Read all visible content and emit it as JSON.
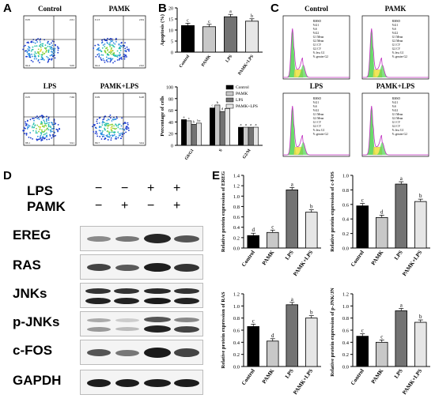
{
  "panels": {
    "a": "A",
    "b": "B",
    "c": "C",
    "d": "D",
    "e": "E"
  },
  "groups": [
    "Control",
    "PAMK",
    "LPS",
    "PAMK+LPS"
  ],
  "flow": {
    "quadrants": [
      {
        "q1": "0.05",
        "q2": "2.61",
        "q3": "94.4",
        "q4": "3.00"
      },
      {
        "q1": "0.13",
        "q2": "2.84",
        "q3": "94.4",
        "q4": "2.62"
      },
      {
        "q1": "0.05",
        "q2": "7.66",
        "q3": "88.1",
        "q4": "3.91"
      },
      {
        "q1": "0.09",
        "q2": "6.48",
        "q3": "89.7",
        "q4": "3.64"
      }
    ]
  },
  "cycle_stats": {
    "labels": [
      "RMSD",
      "%G1",
      "%S",
      "%G2",
      "G1 Mean",
      "G2 Mean",
      "G1 CV",
      "G2 CV",
      "% less G1",
      "% greater G2"
    ]
  },
  "western": {
    "lps_label": "LPS",
    "pamk_label": "PAMK",
    "lps_signs": [
      "−",
      "−",
      "+",
      "+"
    ],
    "pamk_signs": [
      "−",
      "+",
      "−",
      "+"
    ],
    "proteins": [
      "EREG",
      "RAS",
      "JNKs",
      "p-JNKs",
      "c-FOS",
      "GAPDH"
    ]
  },
  "colors": {
    "control": "#000000",
    "pamk": "#c8c8c8",
    "lps": "#737373",
    "pamk_lps": "#e6e6e6"
  },
  "chart_data": [
    {
      "type": "bar",
      "title": "",
      "categories": [
        "Control",
        "PAMK",
        "LPS",
        "PAMK+LPS"
      ],
      "values": [
        12,
        11.5,
        16,
        14
      ],
      "letters": [
        "c",
        "c",
        "a",
        "b"
      ],
      "xlabel": "",
      "ylabel": "Apoptosis (%)",
      "ylim": [
        0,
        20
      ],
      "yticks": [
        "0",
        "5",
        "10",
        "15",
        "20"
      ]
    },
    {
      "type": "bar",
      "title": "",
      "categories": [
        "G0/G1",
        "S",
        "G2/M"
      ],
      "series": [
        {
          "name": "Control",
          "values": [
            44,
            64,
            31
          ],
          "letters": [
            "a",
            "c",
            "a"
          ]
        },
        {
          "name": "PAMK",
          "values": [
            42,
            69,
            31
          ],
          "letters": [
            "c",
            "b",
            "a"
          ]
        },
        {
          "name": "LPS",
          "values": [
            36,
            58,
            31
          ],
          "letters": [
            "b",
            "d",
            "a"
          ]
        },
        {
          "name": "PAMK+LPS",
          "values": [
            38,
            63,
            31
          ],
          "letters": [
            "bc",
            "a",
            "a"
          ]
        }
      ],
      "xlabel": "",
      "ylabel": "Percentage of cells",
      "ylim": [
        0,
        100
      ],
      "yticks": [
        "0",
        "20",
        "40",
        "60",
        "80",
        "100"
      ],
      "legend": "top-right"
    },
    {
      "type": "bar",
      "title": "",
      "categories": [
        "Control",
        "PAMK",
        "LPS",
        "PAMK+LPS"
      ],
      "values": [
        0.24,
        0.3,
        1.12,
        0.69
      ],
      "letters": [
        "d",
        "c",
        "a",
        "b"
      ],
      "ylabel": "Relative protein expression of EREG",
      "ylim": [
        0,
        1.4
      ],
      "yticks": [
        "0.0",
        "0.2",
        "0.4",
        "0.6",
        "0.8",
        "1.0",
        "1.2",
        "1.4"
      ]
    },
    {
      "type": "bar",
      "title": "",
      "categories": [
        "Control",
        "PAMK",
        "LPS",
        "PAMK+LPS"
      ],
      "values": [
        0.58,
        0.42,
        0.88,
        0.64
      ],
      "letters": [
        "c",
        "d",
        "a",
        "b"
      ],
      "ylabel": "Relative protein expression of c-FOS",
      "ylim": [
        0,
        1.0
      ],
      "yticks": [
        "0.0",
        "0.2",
        "0.4",
        "0.6",
        "0.8",
        "1.0"
      ]
    },
    {
      "type": "bar",
      "title": "",
      "categories": [
        "Control",
        "PAMK",
        "LPS",
        "PAMK+LPS"
      ],
      "values": [
        0.66,
        0.42,
        1.02,
        0.8
      ],
      "letters": [
        "c",
        "d",
        "a",
        "b"
      ],
      "ylabel": "Relative protein expression of RAS",
      "ylim": [
        0,
        1.2
      ],
      "yticks": [
        "0.0",
        "0.2",
        "0.4",
        "0.6",
        "0.8",
        "1.0",
        "1.2"
      ]
    },
    {
      "type": "bar",
      "title": "",
      "categories": [
        "Control",
        "PAMK",
        "LPS",
        "PAMK+LPS"
      ],
      "values": [
        0.5,
        0.4,
        0.92,
        0.73
      ],
      "letters": [
        "c",
        "c",
        "a",
        "b"
      ],
      "ylabel": "Relative protein expression of p-JNK/JNK",
      "ylim": [
        0,
        1.2
      ],
      "yticks": [
        "0.0",
        "0.2",
        "0.4",
        "0.6",
        "0.8",
        "1.0",
        "1.2"
      ]
    }
  ]
}
